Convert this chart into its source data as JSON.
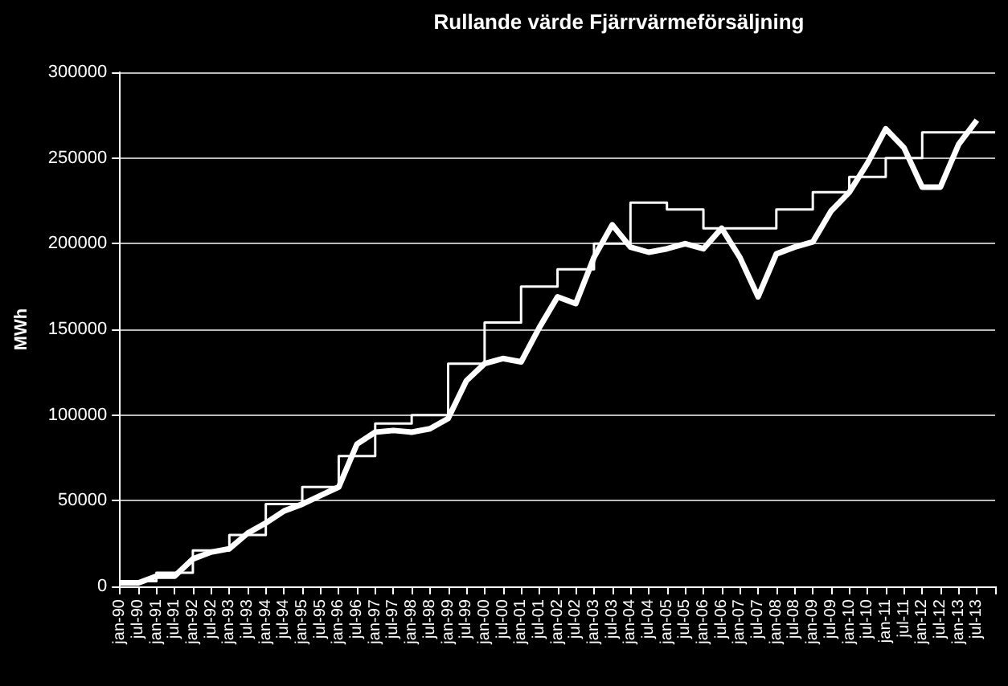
{
  "chart_data": {
    "type": "line",
    "title": "Rullande värde Fjärrvärmeförsäljning",
    "ylabel": "MWh",
    "categories": [
      "jan-90",
      "jul-90",
      "jan-91",
      "jul-91",
      "jan-92",
      "jul-92",
      "jan-93",
      "jul-93",
      "jan-94",
      "jul-94",
      "jan-95",
      "jul-95",
      "jan-96",
      "jul-96",
      "jan-97",
      "jul-97",
      "jan-98",
      "jul-98",
      "jan-99",
      "jul-99",
      "jan-00",
      "jul-00",
      "jan-01",
      "jul-01",
      "jan-02",
      "jul-02",
      "jan-03",
      "jul-03",
      "jan-04",
      "jul-04",
      "jan-05",
      "jul-05",
      "jan-06",
      "jul-06",
      "jan-07",
      "jul-07",
      "jan-08",
      "jul-08",
      "jan-09",
      "jul-09",
      "jan-10",
      "jul-10",
      "jan-11",
      "jul-11",
      "jan-12",
      "jul-12",
      "jan-13",
      "jul-13",
      null
    ],
    "series": [
      {
        "color": "#ffffff",
        "values": [
          2000,
          2000,
          6000,
          6000,
          16000,
          20000,
          22000,
          31000,
          37000,
          44000,
          48000,
          53000,
          58000,
          83000,
          90000,
          91000,
          90000,
          92000,
          98000,
          120000,
          130000,
          133000,
          131000,
          151000,
          169000,
          165000,
          192000,
          211000,
          198000,
          195000,
          197000,
          200000,
          197000,
          209000,
          192000,
          169000,
          194000,
          198000,
          201000,
          219000,
          230000,
          247000,
          267000,
          256000,
          233000,
          233000,
          258000,
          272000,
          null
        ]
      },
      {
        "type": "step",
        "color": "#ffffff",
        "values": [
          3000,
          3000,
          8000,
          8000,
          21000,
          21000,
          30000,
          30000,
          48000,
          48000,
          58000,
          58000,
          76000,
          76000,
          95000,
          95000,
          100000,
          100000,
          130000,
          130000,
          154000,
          154000,
          175000,
          175000,
          185000,
          185000,
          200000,
          200000,
          224000,
          224000,
          220000,
          220000,
          209000,
          209000,
          209000,
          209000,
          220000,
          220000,
          230000,
          230000,
          239000,
          239000,
          250000,
          250000,
          265000,
          265000,
          265000,
          265000,
          265000
        ]
      }
    ],
    "ylim": [
      0,
      300000
    ],
    "yticks": [
      0,
      50000,
      100000,
      150000,
      200000,
      250000,
      300000
    ],
    "grid": "y",
    "marker": "none"
  }
}
